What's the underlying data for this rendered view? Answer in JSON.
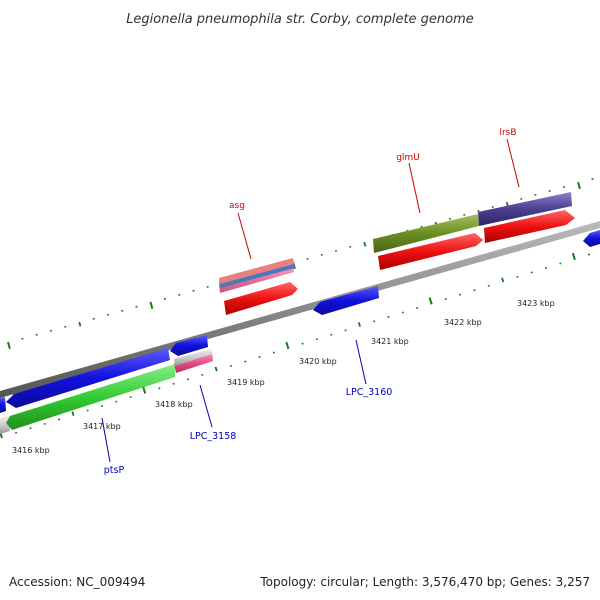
{
  "title": "Legionella pneumophila str. Corby, complete genome",
  "footer": {
    "accession": "Accession: NC_009494",
    "summary": "Topology: circular; Length: 3,576,470 bp; Genes: 3,257"
  },
  "scale": {
    "unit": "kbp",
    "ticks": [
      {
        "label": "3416 kbp"
      },
      {
        "label": "3417 kbp"
      },
      {
        "label": "3418 kbp"
      },
      {
        "label": "3419 kbp"
      },
      {
        "label": "3420 kbp"
      },
      {
        "label": "3421 kbp"
      },
      {
        "label": "3422 kbp"
      },
      {
        "label": "3423 kbp"
      }
    ]
  },
  "gene_labels": [
    {
      "name": "asg",
      "color": "#cc0000"
    },
    {
      "name": "glmU",
      "color": "#cc0000"
    },
    {
      "name": "lrsB",
      "color": "#cc0000"
    },
    {
      "name": "LPC_3158",
      "color": "#0000bb"
    },
    {
      "name": "LPC_3160",
      "color": "#0000bb"
    },
    {
      "name": "ptsP",
      "color": "#0000bb"
    }
  ],
  "colors": {
    "backbone": "#888888",
    "tick_green": "#1a7a1a",
    "cds_blue": "#1111dd",
    "cds_red": "#ee1111",
    "cds_green": "#33cc33",
    "cds_olive": "#6b8e23",
    "cds_purple": "#4b3f8f",
    "cds_pink": "#e8508a",
    "cds_salmon": "#e88080",
    "cds_steel": "#4a7ab8",
    "cds_gray": "#cccccc"
  }
}
